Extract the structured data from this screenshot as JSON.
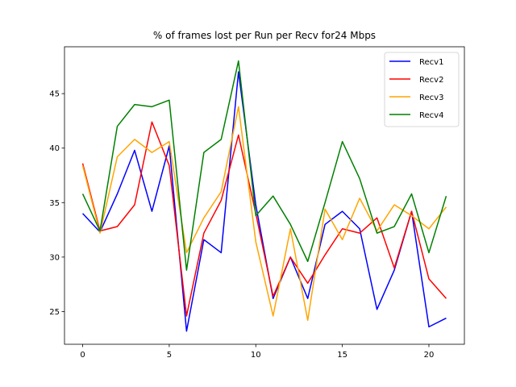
{
  "chart_data": {
    "type": "line",
    "title": "% of frames lost per Run per Recv for24 Mbps",
    "xlabel": "",
    "ylabel": "",
    "x": [
      0,
      1,
      2,
      3,
      4,
      5,
      6,
      7,
      8,
      9,
      10,
      11,
      12,
      13,
      14,
      15,
      16,
      17,
      18,
      19,
      20,
      21
    ],
    "xlim": [
      -1.05,
      22.05
    ],
    "ylim": [
      22.0,
      49.3
    ],
    "xticks": [
      0,
      5,
      10,
      15,
      20
    ],
    "yticks": [
      25,
      30,
      35,
      40,
      45
    ],
    "grid": false,
    "legend_position": "top-right",
    "series": [
      {
        "name": "Recv1",
        "color": "#0000ff",
        "values": [
          34.0,
          32.3,
          35.8,
          39.8,
          34.2,
          40.2,
          23.2,
          31.6,
          30.4,
          47.0,
          34.8,
          26.2,
          30.0,
          26.2,
          33.0,
          34.2,
          32.6,
          25.2,
          28.8,
          34.2,
          23.6,
          24.4
        ]
      },
      {
        "name": "Recv2",
        "color": "#ff0000",
        "values": [
          38.6,
          32.4,
          32.8,
          34.8,
          42.4,
          38.4,
          24.6,
          32.2,
          35.2,
          41.2,
          34.0,
          26.4,
          30.0,
          27.6,
          30.2,
          32.6,
          32.2,
          33.6,
          29.0,
          34.2,
          28.0,
          26.2
        ]
      },
      {
        "name": "Recv3",
        "color": "#ffa500",
        "values": [
          38.4,
          32.2,
          39.2,
          40.8,
          39.6,
          40.6,
          30.4,
          33.6,
          36.0,
          43.8,
          31.4,
          24.6,
          32.6,
          24.2,
          34.4,
          31.6,
          35.4,
          32.4,
          34.8,
          33.8,
          32.6,
          34.6
        ]
      },
      {
        "name": "Recv4",
        "color": "#008000",
        "values": [
          35.8,
          32.4,
          42.0,
          44.0,
          43.8,
          44.4,
          28.8,
          39.6,
          40.8,
          48.0,
          33.8,
          35.6,
          33.0,
          29.6,
          35.0,
          40.6,
          37.2,
          32.2,
          32.8,
          35.8,
          30.4,
          35.6
        ]
      }
    ]
  }
}
